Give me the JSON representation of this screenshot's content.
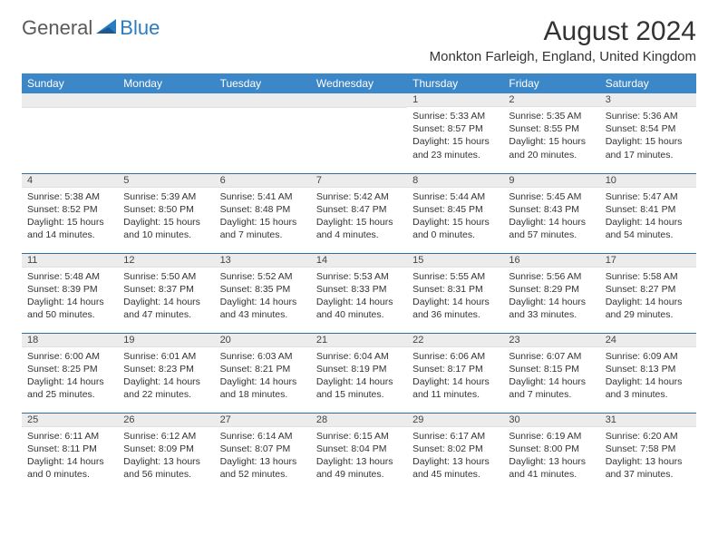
{
  "logo": {
    "general": "General",
    "blue": "Blue"
  },
  "title": "August 2024",
  "location": "Monkton Farleigh, England, United Kingdom",
  "colors": {
    "header_bg": "#3b87c8",
    "header_text": "#ffffff",
    "daynum_bg": "#ececec",
    "week_sep": "#2f6fa8",
    "text": "#333333",
    "logo_gray": "#5a5a5a",
    "logo_blue": "#2b7bbf"
  },
  "day_headers": [
    "Sunday",
    "Monday",
    "Tuesday",
    "Wednesday",
    "Thursday",
    "Friday",
    "Saturday"
  ],
  "weeks": [
    [
      null,
      null,
      null,
      null,
      {
        "n": "1",
        "sunrise": "5:33 AM",
        "sunset": "8:57 PM",
        "daylight": "15 hours and 23 minutes."
      },
      {
        "n": "2",
        "sunrise": "5:35 AM",
        "sunset": "8:55 PM",
        "daylight": "15 hours and 20 minutes."
      },
      {
        "n": "3",
        "sunrise": "5:36 AM",
        "sunset": "8:54 PM",
        "daylight": "15 hours and 17 minutes."
      }
    ],
    [
      {
        "n": "4",
        "sunrise": "5:38 AM",
        "sunset": "8:52 PM",
        "daylight": "15 hours and 14 minutes."
      },
      {
        "n": "5",
        "sunrise": "5:39 AM",
        "sunset": "8:50 PM",
        "daylight": "15 hours and 10 minutes."
      },
      {
        "n": "6",
        "sunrise": "5:41 AM",
        "sunset": "8:48 PM",
        "daylight": "15 hours and 7 minutes."
      },
      {
        "n": "7",
        "sunrise": "5:42 AM",
        "sunset": "8:47 PM",
        "daylight": "15 hours and 4 minutes."
      },
      {
        "n": "8",
        "sunrise": "5:44 AM",
        "sunset": "8:45 PM",
        "daylight": "15 hours and 0 minutes."
      },
      {
        "n": "9",
        "sunrise": "5:45 AM",
        "sunset": "8:43 PM",
        "daylight": "14 hours and 57 minutes."
      },
      {
        "n": "10",
        "sunrise": "5:47 AM",
        "sunset": "8:41 PM",
        "daylight": "14 hours and 54 minutes."
      }
    ],
    [
      {
        "n": "11",
        "sunrise": "5:48 AM",
        "sunset": "8:39 PM",
        "daylight": "14 hours and 50 minutes."
      },
      {
        "n": "12",
        "sunrise": "5:50 AM",
        "sunset": "8:37 PM",
        "daylight": "14 hours and 47 minutes."
      },
      {
        "n": "13",
        "sunrise": "5:52 AM",
        "sunset": "8:35 PM",
        "daylight": "14 hours and 43 minutes."
      },
      {
        "n": "14",
        "sunrise": "5:53 AM",
        "sunset": "8:33 PM",
        "daylight": "14 hours and 40 minutes."
      },
      {
        "n": "15",
        "sunrise": "5:55 AM",
        "sunset": "8:31 PM",
        "daylight": "14 hours and 36 minutes."
      },
      {
        "n": "16",
        "sunrise": "5:56 AM",
        "sunset": "8:29 PM",
        "daylight": "14 hours and 33 minutes."
      },
      {
        "n": "17",
        "sunrise": "5:58 AM",
        "sunset": "8:27 PM",
        "daylight": "14 hours and 29 minutes."
      }
    ],
    [
      {
        "n": "18",
        "sunrise": "6:00 AM",
        "sunset": "8:25 PM",
        "daylight": "14 hours and 25 minutes."
      },
      {
        "n": "19",
        "sunrise": "6:01 AM",
        "sunset": "8:23 PM",
        "daylight": "14 hours and 22 minutes."
      },
      {
        "n": "20",
        "sunrise": "6:03 AM",
        "sunset": "8:21 PM",
        "daylight": "14 hours and 18 minutes."
      },
      {
        "n": "21",
        "sunrise": "6:04 AM",
        "sunset": "8:19 PM",
        "daylight": "14 hours and 15 minutes."
      },
      {
        "n": "22",
        "sunrise": "6:06 AM",
        "sunset": "8:17 PM",
        "daylight": "14 hours and 11 minutes."
      },
      {
        "n": "23",
        "sunrise": "6:07 AM",
        "sunset": "8:15 PM",
        "daylight": "14 hours and 7 minutes."
      },
      {
        "n": "24",
        "sunrise": "6:09 AM",
        "sunset": "8:13 PM",
        "daylight": "14 hours and 3 minutes."
      }
    ],
    [
      {
        "n": "25",
        "sunrise": "6:11 AM",
        "sunset": "8:11 PM",
        "daylight": "14 hours and 0 minutes."
      },
      {
        "n": "26",
        "sunrise": "6:12 AM",
        "sunset": "8:09 PM",
        "daylight": "13 hours and 56 minutes."
      },
      {
        "n": "27",
        "sunrise": "6:14 AM",
        "sunset": "8:07 PM",
        "daylight": "13 hours and 52 minutes."
      },
      {
        "n": "28",
        "sunrise": "6:15 AM",
        "sunset": "8:04 PM",
        "daylight": "13 hours and 49 minutes."
      },
      {
        "n": "29",
        "sunrise": "6:17 AM",
        "sunset": "8:02 PM",
        "daylight": "13 hours and 45 minutes."
      },
      {
        "n": "30",
        "sunrise": "6:19 AM",
        "sunset": "8:00 PM",
        "daylight": "13 hours and 41 minutes."
      },
      {
        "n": "31",
        "sunrise": "6:20 AM",
        "sunset": "7:58 PM",
        "daylight": "13 hours and 37 minutes."
      }
    ]
  ],
  "labels": {
    "sunrise": "Sunrise:",
    "sunset": "Sunset:",
    "daylight": "Daylight:"
  }
}
